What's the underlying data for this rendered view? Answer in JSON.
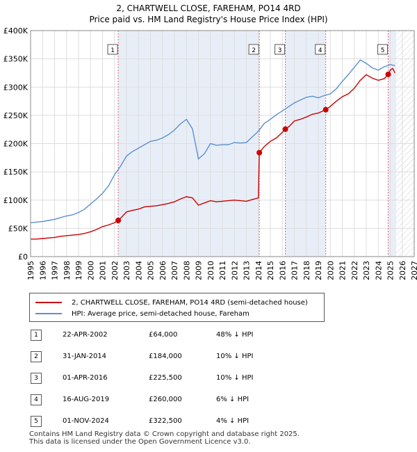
{
  "header": {
    "title_line1": "2, CHARTWELL CLOSE, FAREHAM, PO14 4RD",
    "title_line2": "Price paid vs. HM Land Registry's House Price Index (HPI)"
  },
  "colors": {
    "price_line": "#cc0000",
    "hpi_line": "#5b8fd0",
    "marker_line": "#e06060",
    "shade": "#e8eef8",
    "grid": "#dddddd"
  },
  "chart_data": {
    "type": "line",
    "title": "2, CHARTWELL CLOSE, FAREHAM, PO14 4RD",
    "subtitle": "Price paid vs. HM Land Registry's House Price Index (HPI)",
    "xlabel": "",
    "ylabel": "",
    "xlim": [
      1995,
      2027
    ],
    "ylim": [
      0,
      400000
    ],
    "x_ticks": [
      1995,
      1996,
      1997,
      1998,
      1999,
      2000,
      2001,
      2002,
      2003,
      2004,
      2005,
      2006,
      2007,
      2008,
      2009,
      2010,
      2011,
      2012,
      2013,
      2014,
      2015,
      2016,
      2017,
      2018,
      2019,
      2020,
      2021,
      2022,
      2023,
      2024,
      2025,
      2026,
      2027
    ],
    "y_ticks": [
      {
        "value": 0,
        "label": "£0"
      },
      {
        "value": 50000,
        "label": "£50K"
      },
      {
        "value": 100000,
        "label": "£100K"
      },
      {
        "value": 150000,
        "label": "£150K"
      },
      {
        "value": 200000,
        "label": "£200K"
      },
      {
        "value": 250000,
        "label": "£250K"
      },
      {
        "value": 300000,
        "label": "£300K"
      },
      {
        "value": 350000,
        "label": "£350K"
      },
      {
        "value": 400000,
        "label": "£400K"
      }
    ],
    "grid": true,
    "future_hatch_from": 2025.5,
    "shaded_ranges": [
      [
        2002.31,
        2014.08
      ],
      [
        2016.25,
        2019.62
      ],
      [
        2024.83,
        2025.5
      ]
    ],
    "series": [
      {
        "name": "2, CHARTWELL CLOSE, FAREHAM, PO14 4RD (semi-detached house)",
        "color": "#cc0000",
        "x": [
          1995.0,
          1995.5,
          1996.0,
          1996.5,
          1997.0,
          1997.5,
          1998.0,
          1998.5,
          1999.0,
          1999.5,
          2000.0,
          2000.5,
          2001.0,
          2001.5,
          2002.0,
          2002.31,
          2002.6,
          2003.0,
          2003.5,
          2004.0,
          2004.5,
          2005.0,
          2005.5,
          2006.0,
          2006.5,
          2007.0,
          2007.5,
          2008.0,
          2008.5,
          2009.0,
          2009.5,
          2010.0,
          2010.5,
          2011.0,
          2011.5,
          2012.0,
          2012.5,
          2013.0,
          2013.5,
          2014.0,
          2014.08,
          2014.5,
          2015.0,
          2015.5,
          2016.0,
          2016.25,
          2016.6,
          2017.0,
          2017.5,
          2018.0,
          2018.5,
          2019.0,
          2019.62,
          2020.0,
          2020.5,
          2021.0,
          2021.5,
          2022.0,
          2022.5,
          2023.0,
          2023.5,
          2024.0,
          2024.5,
          2024.83,
          2025.0,
          2025.2,
          2025.4
        ],
        "values": [
          31000,
          31000,
          32000,
          33000,
          34000,
          36000,
          37000,
          38000,
          39000,
          41000,
          44000,
          48000,
          53000,
          56000,
          60000,
          64000,
          70000,
          79000,
          82000,
          84000,
          88000,
          89000,
          90000,
          92000,
          94000,
          97000,
          102000,
          106000,
          104000,
          91000,
          95000,
          99000,
          97000,
          98000,
          99000,
          100000,
          99000,
          98000,
          101000,
          104000,
          184000,
          195000,
          204000,
          210000,
          220000,
          225500,
          231000,
          240000,
          243000,
          247000,
          252000,
          254000,
          260000,
          266000,
          275000,
          283000,
          288000,
          298000,
          312000,
          322000,
          316000,
          312000,
          315000,
          322500,
          330000,
          333000,
          325000
        ]
      },
      {
        "name": "HPI: Average price, semi-detached house, Fareham",
        "color": "#5b8fd0",
        "x": [
          1995.0,
          1995.5,
          1996.0,
          1996.5,
          1997.0,
          1997.5,
          1998.0,
          1998.5,
          1999.0,
          1999.5,
          2000.0,
          2000.5,
          2001.0,
          2001.5,
          2002.0,
          2002.5,
          2003.0,
          2003.5,
          2004.0,
          2004.5,
          2005.0,
          2005.5,
          2006.0,
          2006.5,
          2007.0,
          2007.5,
          2008.0,
          2008.5,
          2009.0,
          2009.5,
          2010.0,
          2010.5,
          2011.0,
          2011.5,
          2012.0,
          2012.5,
          2013.0,
          2013.5,
          2014.0,
          2014.5,
          2015.0,
          2015.5,
          2016.0,
          2016.5,
          2017.0,
          2017.5,
          2018.0,
          2018.5,
          2019.0,
          2019.5,
          2020.0,
          2020.5,
          2021.0,
          2021.5,
          2022.0,
          2022.5,
          2023.0,
          2023.5,
          2024.0,
          2024.5,
          2025.0,
          2025.4
        ],
        "values": [
          60000,
          61000,
          62000,
          64000,
          66000,
          69000,
          72000,
          74000,
          78000,
          84000,
          93000,
          102000,
          112000,
          125000,
          145000,
          160000,
          178000,
          186000,
          192000,
          198000,
          204000,
          206000,
          210000,
          216000,
          224000,
          235000,
          243000,
          226000,
          173000,
          182000,
          200000,
          197000,
          198000,
          198000,
          202000,
          201000,
          202000,
          212000,
          222000,
          236000,
          243000,
          251000,
          258000,
          265000,
          272000,
          277000,
          282000,
          284000,
          281000,
          285000,
          288000,
          297000,
          310000,
          322000,
          335000,
          348000,
          342000,
          334000,
          330000,
          336000,
          340000,
          338000
        ]
      }
    ],
    "sales": [
      {
        "num": "1",
        "x": 2002.31,
        "value": 64000
      },
      {
        "num": "2",
        "x": 2014.08,
        "value": 184000
      },
      {
        "num": "3",
        "x": 2016.25,
        "value": 225500
      },
      {
        "num": "4",
        "x": 2019.62,
        "value": 260000
      },
      {
        "num": "5",
        "x": 2024.83,
        "value": 322500
      }
    ]
  },
  "legend": {
    "price_label": "2, CHARTWELL CLOSE, FAREHAM, PO14 4RD (semi-detached house)",
    "hpi_label": "HPI: Average price, semi-detached house, Fareham"
  },
  "sales_table": [
    {
      "num": "1",
      "date": "22-APR-2002",
      "price": "£64,000",
      "hpi": "48% ↓ HPI"
    },
    {
      "num": "2",
      "date": "31-JAN-2014",
      "price": "£184,000",
      "hpi": "10% ↓ HPI"
    },
    {
      "num": "3",
      "date": "01-APR-2016",
      "price": "£225,500",
      "hpi": "10% ↓ HPI"
    },
    {
      "num": "4",
      "date": "16-AUG-2019",
      "price": "£260,000",
      "hpi": "6% ↓ HPI"
    },
    {
      "num": "5",
      "date": "01-NOV-2024",
      "price": "£322,500",
      "hpi": "4% ↓ HPI"
    }
  ],
  "footer": {
    "line1": "Contains HM Land Registry data © Crown copyright and database right 2025.",
    "line2": "This data is licensed under the Open Government Licence v3.0."
  }
}
